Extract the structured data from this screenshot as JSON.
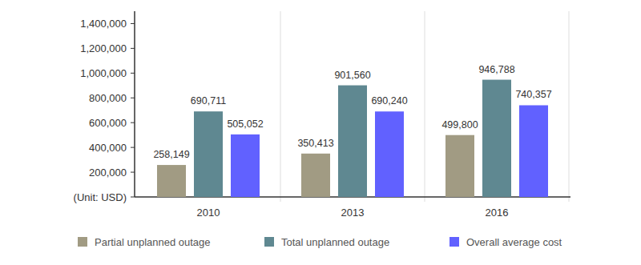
{
  "chart_data": {
    "type": "bar",
    "categories": [
      "2010",
      "2013",
      "2016"
    ],
    "series": [
      {
        "name": "Partial unplanned outage",
        "color": "#a19b83",
        "values": [
          258149,
          350413,
          499800
        ],
        "value_labels": [
          "258,149",
          "350,413",
          "499,800"
        ]
      },
      {
        "name": "Total unplanned outage",
        "color": "#5f8891",
        "values": [
          690711,
          901560,
          946788
        ],
        "value_labels": [
          "690,711",
          "901,560",
          "946,788"
        ]
      },
      {
        "name": "Overall average cost",
        "color": "#6161ff",
        "values": [
          505052,
          690240,
          740357
        ],
        "value_labels": [
          "505,052",
          "690,240",
          "740,357"
        ]
      }
    ],
    "ylim": [
      0,
      1500000
    ],
    "yticks": [
      {
        "value": 0,
        "label": "(Unit: USD)"
      },
      {
        "value": 200000,
        "label": "200,000"
      },
      {
        "value": 400000,
        "label": "400,000"
      },
      {
        "value": 600000,
        "label": "600,000"
      },
      {
        "value": 800000,
        "label": "800,000"
      },
      {
        "value": 1000000,
        "label": "1,000,000"
      },
      {
        "value": 1200000,
        "label": "1,200,000"
      },
      {
        "value": 1400000,
        "label": "1,400,000"
      }
    ],
    "grid": false,
    "data_labels": true,
    "legend": "bottom"
  }
}
